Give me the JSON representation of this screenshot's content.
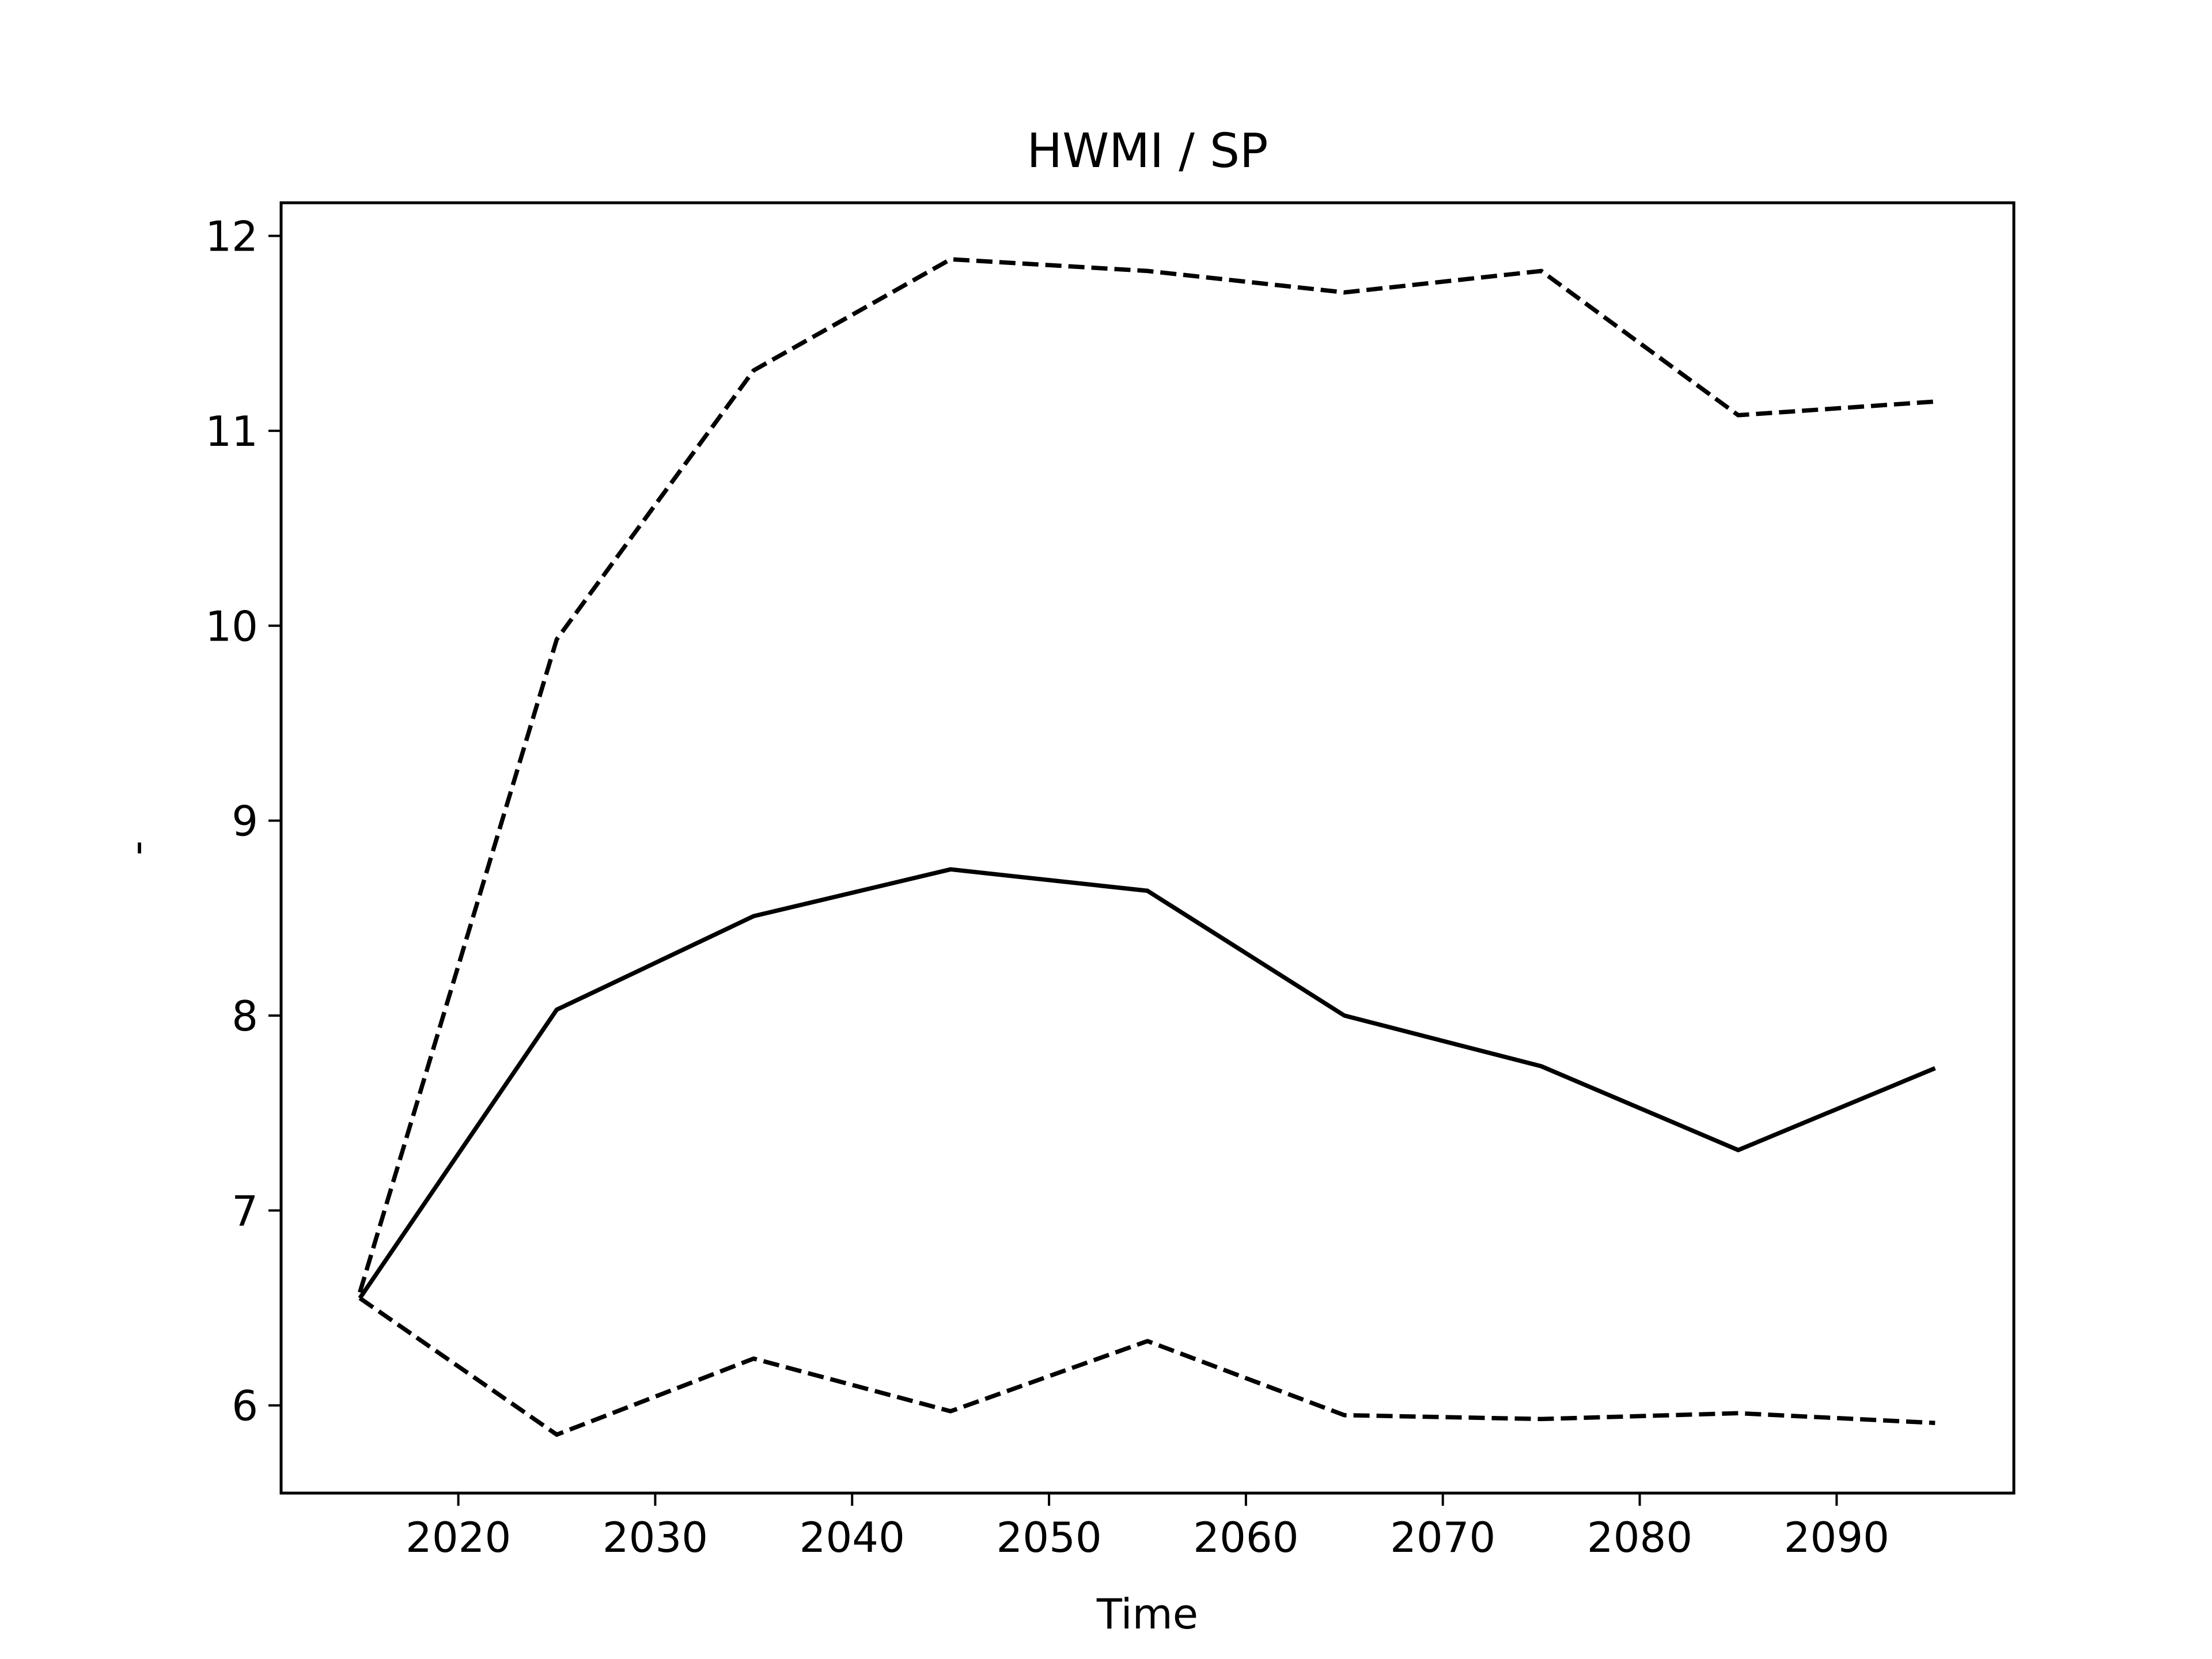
{
  "chart_data": {
    "type": "line",
    "title": "HWMI / SP",
    "xlabel": "Time",
    "ylabel": "-",
    "xlim": [
      2011,
      2099
    ],
    "ylim": [
      5.55,
      12.17
    ],
    "xticks": [
      2020,
      2030,
      2040,
      2050,
      2060,
      2070,
      2080,
      2090
    ],
    "yticks": [
      6,
      7,
      8,
      9,
      10,
      11,
      12
    ],
    "grid": false,
    "legend": "none",
    "x": [
      2015,
      2025,
      2035,
      2045,
      2055,
      2065,
      2075,
      2085,
      2095
    ],
    "series": [
      {
        "style": "dashed",
        "color": "#000000",
        "values": [
          6.58,
          9.93,
          11.31,
          11.88,
          11.82,
          11.71,
          11.82,
          11.08,
          11.15
        ]
      },
      {
        "style": "solid",
        "color": "#000000",
        "values": [
          6.55,
          8.03,
          8.51,
          8.75,
          8.64,
          8.0,
          7.74,
          7.31,
          7.73
        ]
      },
      {
        "style": "dashed",
        "color": "#000000",
        "values": [
          6.55,
          5.85,
          6.24,
          5.97,
          6.33,
          5.95,
          5.93,
          5.96,
          5.91
        ]
      }
    ]
  }
}
